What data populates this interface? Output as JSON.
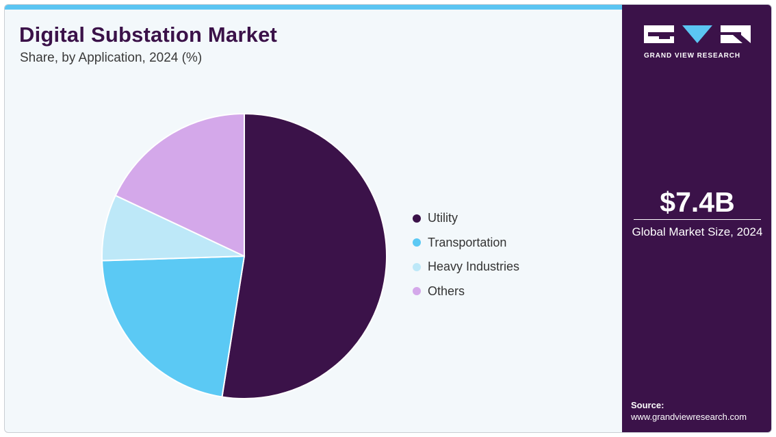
{
  "header": {
    "title": "Digital Substation Market",
    "subtitle": "Share, by Application, 2024 (%)"
  },
  "colors": {
    "accent_bar": "#5bc5f2",
    "side_panel": "#3b1249",
    "background": "#f3f8fb"
  },
  "chart_data": {
    "type": "pie",
    "title": "Digital Substation Market",
    "subtitle": "Share, by Application, 2024 (%)",
    "legend_position": "right",
    "slices": [
      {
        "label": "Utility",
        "value": 52.5,
        "color": "#3b1249"
      },
      {
        "label": "Transportation",
        "value": 22.0,
        "color": "#5bc9f4"
      },
      {
        "label": "Heavy Industries",
        "value": 7.5,
        "color": "#bde8f8"
      },
      {
        "label": "Others",
        "value": 18.0,
        "color": "#d4a8ea"
      }
    ]
  },
  "side_panel": {
    "logo_text": "GRAND VIEW RESEARCH",
    "market_value": "$7.4B",
    "market_label": "Global Market Size, 2024",
    "source_label": "Source:",
    "source_url": "www.grandviewresearch.com"
  }
}
